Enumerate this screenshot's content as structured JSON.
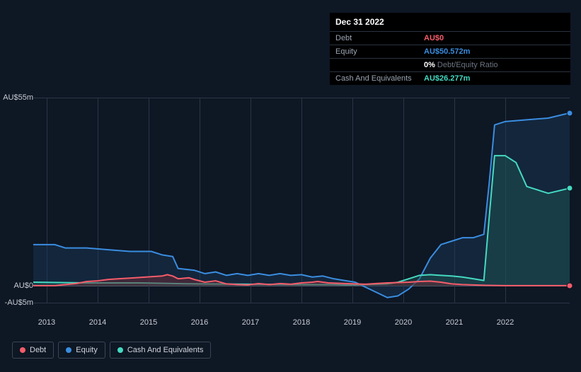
{
  "tooltip": {
    "title": "Dec 31 2022",
    "rows": [
      {
        "label": "Debt",
        "value": "AU$0",
        "color": "#f65c6a"
      },
      {
        "label": "Equity",
        "value": "AU$50.572m",
        "color": "#3a8de0"
      },
      {
        "label": "",
        "value": "0%",
        "suffix": "Debt/Equity Ratio",
        "color": "#ffffff"
      },
      {
        "label": "Cash And Equivalents",
        "value": "AU$26.277m",
        "color": "#45d9c1"
      }
    ]
  },
  "chart": {
    "type": "area",
    "background": "#0e1724",
    "grid_color": "#2a3545",
    "y_axis": {
      "min": -5,
      "max": 55,
      "unit": "AU$ m",
      "ticks": [
        {
          "v": 55,
          "label": "AU$55m"
        },
        {
          "v": 0,
          "label": "AU$0"
        },
        {
          "v": -5,
          "label": "-AU$5m"
        }
      ]
    },
    "x_axis": {
      "ticks": [
        "2013",
        "2014",
        "2015",
        "2016",
        "2017",
        "2018",
        "2019",
        "2020",
        "2021",
        "2022"
      ],
      "tick_positions_pct": [
        2.5,
        12.0,
        21.5,
        31.0,
        40.5,
        50.0,
        59.5,
        69.0,
        78.5,
        88.0
      ]
    },
    "series": [
      {
        "name": "Equity",
        "color": "#3a8de0",
        "fill": "#1a3a5a",
        "fill_opacity": 0.45,
        "line_width": 2,
        "points": [
          [
            0,
            12
          ],
          [
            4,
            12
          ],
          [
            6,
            11
          ],
          [
            10,
            11
          ],
          [
            14,
            10.5
          ],
          [
            18,
            10
          ],
          [
            22,
            10
          ],
          [
            24,
            9
          ],
          [
            26,
            8.5
          ],
          [
            27,
            5
          ],
          [
            30,
            4.5
          ],
          [
            32,
            3.5
          ],
          [
            34,
            4
          ],
          [
            36,
            3
          ],
          [
            38,
            3.5
          ],
          [
            40,
            3
          ],
          [
            42,
            3.5
          ],
          [
            44,
            3
          ],
          [
            46,
            3.5
          ],
          [
            48,
            3
          ],
          [
            50,
            3.2
          ],
          [
            52,
            2.5
          ],
          [
            54,
            2.8
          ],
          [
            56,
            2
          ],
          [
            58,
            1.5
          ],
          [
            60,
            1
          ],
          [
            62,
            -0.5
          ],
          [
            64,
            -2
          ],
          [
            66,
            -3.5
          ],
          [
            68,
            -3
          ],
          [
            70,
            -1
          ],
          [
            72,
            2
          ],
          [
            74,
            8
          ],
          [
            76,
            12
          ],
          [
            78,
            13
          ],
          [
            80,
            14
          ],
          [
            82,
            14
          ],
          [
            84,
            15
          ],
          [
            85,
            30
          ],
          [
            86,
            47
          ],
          [
            88,
            48
          ],
          [
            92,
            48.5
          ],
          [
            96,
            49
          ],
          [
            100,
            50.5
          ]
        ]
      },
      {
        "name": "Cash And Equivalents",
        "color": "#45d9c1",
        "fill": "#1f5a55",
        "fill_opacity": 0.45,
        "line_width": 2,
        "points": [
          [
            0,
            1
          ],
          [
            10,
            0.8
          ],
          [
            20,
            0.8
          ],
          [
            26,
            0.6
          ],
          [
            30,
            0.5
          ],
          [
            40,
            0.4
          ],
          [
            50,
            0.3
          ],
          [
            56,
            0.3
          ],
          [
            58,
            0.2
          ],
          [
            60,
            0.2
          ],
          [
            62,
            0.3
          ],
          [
            64,
            0.4
          ],
          [
            66,
            0.5
          ],
          [
            68,
            1
          ],
          [
            70,
            2
          ],
          [
            72,
            3
          ],
          [
            74,
            3.2
          ],
          [
            76,
            3
          ],
          [
            78,
            2.8
          ],
          [
            80,
            2.5
          ],
          [
            82,
            2
          ],
          [
            84,
            1.5
          ],
          [
            85,
            20
          ],
          [
            86,
            38
          ],
          [
            88,
            38
          ],
          [
            90,
            36
          ],
          [
            92,
            29
          ],
          [
            96,
            27
          ],
          [
            100,
            28.5
          ]
        ]
      },
      {
        "name": "Debt",
        "color": "#f65c6a",
        "fill": "#6b2a35",
        "fill_opacity": 0.5,
        "line_width": 2,
        "points": [
          [
            0,
            0
          ],
          [
            4,
            0
          ],
          [
            6,
            0.3
          ],
          [
            8,
            0.6
          ],
          [
            10,
            1.2
          ],
          [
            12,
            1.4
          ],
          [
            14,
            1.8
          ],
          [
            16,
            2
          ],
          [
            18,
            2.2
          ],
          [
            20,
            2.4
          ],
          [
            22,
            2.6
          ],
          [
            24,
            2.8
          ],
          [
            25,
            3.2
          ],
          [
            26,
            2.8
          ],
          [
            27,
            2
          ],
          [
            29,
            2.3
          ],
          [
            30,
            1.8
          ],
          [
            32,
            1
          ],
          [
            34,
            1.4
          ],
          [
            36,
            0.5
          ],
          [
            38,
            0.3
          ],
          [
            40,
            0.2
          ],
          [
            42,
            0.6
          ],
          [
            44,
            0.3
          ],
          [
            46,
            0.6
          ],
          [
            48,
            0.4
          ],
          [
            50,
            0.8
          ],
          [
            52,
            1
          ],
          [
            53,
            1.2
          ],
          [
            55,
            0.8
          ],
          [
            58,
            0.6
          ],
          [
            60,
            0.5
          ],
          [
            62,
            0.4
          ],
          [
            64,
            0.6
          ],
          [
            66,
            0.8
          ],
          [
            68,
            0.9
          ],
          [
            70,
            1
          ],
          [
            72,
            1.2
          ],
          [
            74,
            1.3
          ],
          [
            76,
            1
          ],
          [
            78,
            0.5
          ],
          [
            80,
            0.3
          ],
          [
            82,
            0.2
          ],
          [
            84,
            0.1
          ],
          [
            88,
            0
          ],
          [
            92,
            0
          ],
          [
            96,
            0
          ],
          [
            100,
            0
          ]
        ]
      }
    ],
    "legend": [
      {
        "label": "Debt",
        "color": "#f65c6a"
      },
      {
        "label": "Equity",
        "color": "#3a8de0"
      },
      {
        "label": "Cash And Equivalents",
        "color": "#45d9c1"
      }
    ]
  }
}
